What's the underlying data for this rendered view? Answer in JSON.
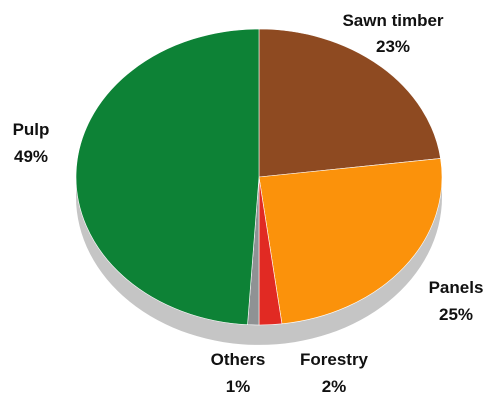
{
  "chart_data": {
    "type": "pie",
    "title": "",
    "slices": [
      {
        "label": "Sawn timber",
        "value_label": "23%",
        "value": 23,
        "color": "#8e4a21"
      },
      {
        "label": "Panels",
        "value_label": "25%",
        "value": 25,
        "color": "#fb920b"
      },
      {
        "label": "Forestry",
        "value_label": "2%",
        "value": 2,
        "color": "#e12a23"
      },
      {
        "label": "Others",
        "value_label": "1%",
        "value": 1,
        "color": "#8f9294"
      },
      {
        "label": "Pulp",
        "value_label": "49%",
        "value": 49,
        "color": "#0d8236"
      }
    ],
    "style": "3d-tilted",
    "depth_color": "#c5c5c5",
    "legend": "none"
  }
}
